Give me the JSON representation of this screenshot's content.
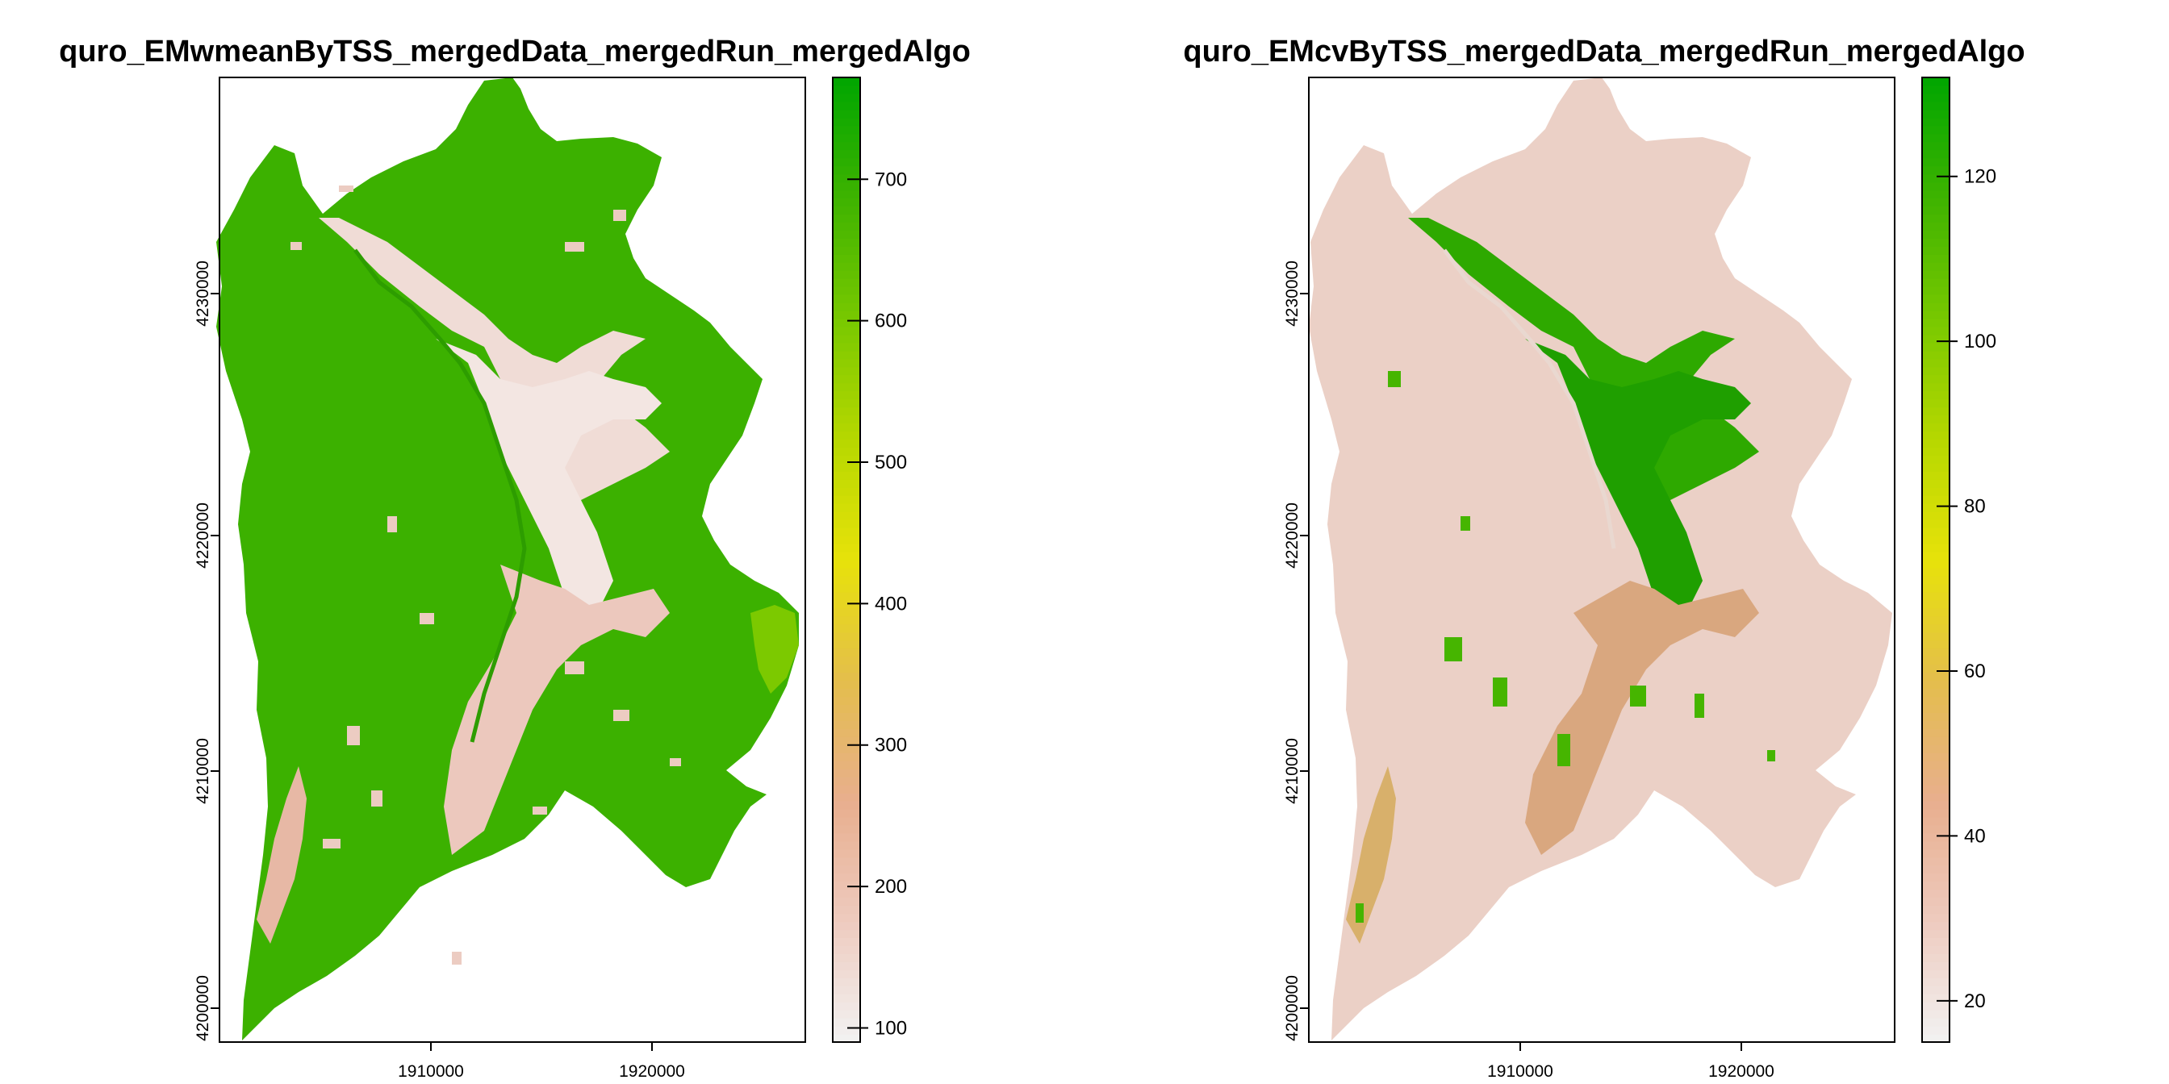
{
  "panels": [
    {
      "title": "quro_EMwmeanByTSS_mergedData_mergedRun_mergedAlgo",
      "x_ticks": [
        {
          "value": 1910000,
          "label": "1910000"
        },
        {
          "value": 1920000,
          "label": "1920000"
        }
      ],
      "y_ticks": [
        {
          "value": 4230000,
          "label": "4230000"
        },
        {
          "value": 4220000,
          "label": "4220000"
        },
        {
          "value": 4210000,
          "label": "4210000"
        },
        {
          "value": 4200000,
          "label": "4200000"
        }
      ],
      "legend": {
        "min": 90,
        "max": 772,
        "ticks": [
          100,
          200,
          300,
          400,
          500,
          600,
          700
        ],
        "tick_labels": [
          "100",
          "200",
          "300",
          "400",
          "500",
          "600",
          "700"
        ]
      }
    },
    {
      "title": "quro_EMcvByTSS_mergedData_mergedRun_mergedAlgo",
      "x_ticks": [
        {
          "value": 1910000,
          "label": "1910000"
        },
        {
          "value": 1920000,
          "label": "1920000"
        }
      ],
      "y_ticks": [
        {
          "value": 4230000,
          "label": "4230000"
        },
        {
          "value": 4220000,
          "label": "4220000"
        },
        {
          "value": 4210000,
          "label": "4210000"
        },
        {
          "value": 4200000,
          "label": "4200000"
        }
      ],
      "legend": {
        "min": 15,
        "max": 132,
        "ticks": [
          20,
          40,
          60,
          80,
          100,
          120
        ],
        "tick_labels": [
          "20",
          "40",
          "60",
          "80",
          "100",
          "120"
        ]
      }
    }
  ],
  "colors": {
    "ramp": [
      "#f2f2f2",
      "#eecbbf",
      "#e8ae8e",
      "#e4be4c",
      "#e7e20a",
      "#b6d800",
      "#78c800",
      "#3eb300",
      "#00a600"
    ],
    "ramp_name": "terrain.colors reversed",
    "frame": "#000000"
  }
}
